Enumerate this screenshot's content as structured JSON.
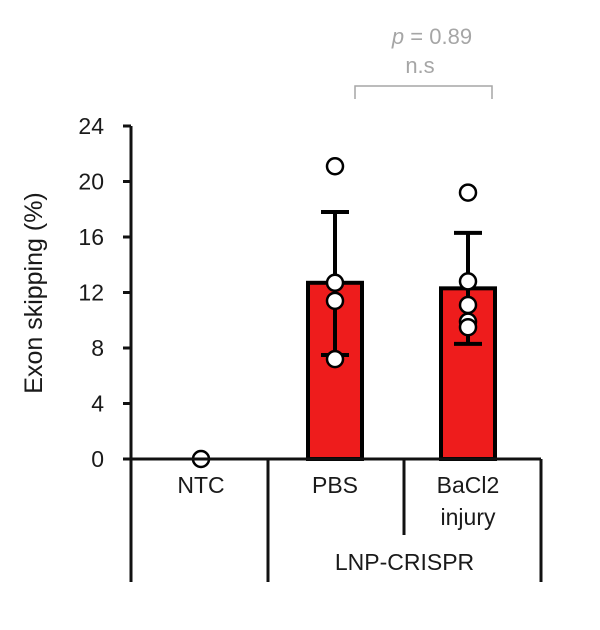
{
  "chart_data": {
    "type": "bar",
    "ylabel": "Exon skipping (%)",
    "ylim": [
      0,
      24
    ],
    "yticks": [
      0,
      4,
      8,
      12,
      16,
      20,
      24
    ],
    "categories": [
      "NTC",
      "PBS",
      "BaCl2 injury"
    ],
    "category_lines": [
      [
        "NTC"
      ],
      [
        "PBS"
      ],
      [
        "BaCl2",
        "injury"
      ]
    ],
    "group_label": "LNP-CRISPR",
    "bars": [
      {
        "category": "NTC",
        "mean": 0,
        "err_upper": null,
        "err_lower": null,
        "points": [
          0
        ]
      },
      {
        "category": "PBS",
        "mean": 12.7,
        "err_upper": 17.8,
        "err_lower": 7.5,
        "points": [
          21.1,
          12.7,
          11.4,
          7.2
        ]
      },
      {
        "category": "BaCl2 injury",
        "mean": 12.3,
        "err_upper": 16.3,
        "err_lower": 8.3,
        "points": [
          19.2,
          12.8,
          11.1,
          9.9,
          9.5
        ]
      }
    ],
    "bar_color": "#ee1c1c",
    "significance": {
      "p_label": "p",
      "p_value_text": " = 0.89",
      "label": "n.s",
      "between": [
        "PBS",
        "BaCl2 injury"
      ]
    }
  }
}
